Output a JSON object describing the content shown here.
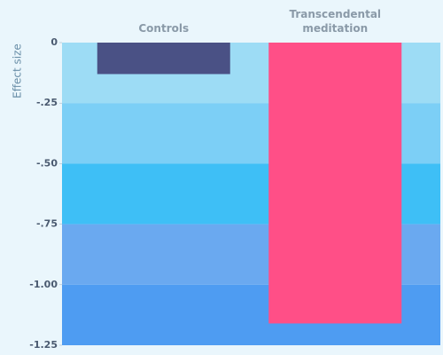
{
  "chart_data": {
    "type": "bar",
    "y_label": "Effect size",
    "categories": [
      "Controls",
      "Transcendental meditation"
    ],
    "values": [
      -0.13,
      -1.16
    ],
    "colors": [
      "#4a5185",
      "#ff4f87"
    ],
    "ylim": [
      0,
      -1.25
    ],
    "yticks": [
      0,
      {
        "value": -0.25,
        "label": "-.25"
      },
      {
        "value": -0.5,
        "label": "-.50"
      },
      {
        "value": -0.75,
        "label": "-.75"
      },
      {
        "value": -1,
        "label": "-1.00"
      },
      {
        "value": -1.25,
        "label": "-1.25"
      }
    ],
    "band_colors": [
      "#9ddcf5",
      "#7ccff6",
      "#3ebff6",
      "#6aa9f0",
      "#4e9cf2"
    ]
  }
}
